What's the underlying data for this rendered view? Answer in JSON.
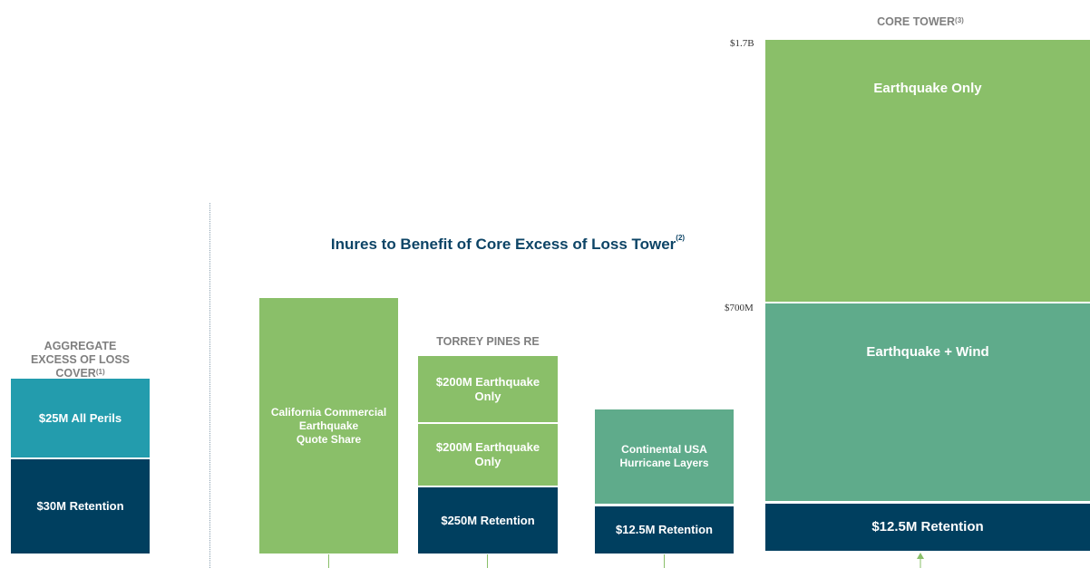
{
  "aggregate": {
    "title": [
      "AGGREGATE",
      "EXCESS OF LOSS",
      "COVER"
    ],
    "note": "(1)",
    "layers": [
      "$25M All Perils",
      "$30M Retention"
    ]
  },
  "heading": {
    "title": "Inures to Benefit of Core Excess of Loss Tower",
    "note": "(2)"
  },
  "quote_share": [
    "California Commercial",
    "Earthquake",
    "Quote Share"
  ],
  "torrey": {
    "title": "TORREY PINES RE",
    "layers": [
      [
        "$200M Earthquake",
        "Only"
      ],
      [
        "$200M Earthquake",
        "Only"
      ],
      [
        "$250M Retention"
      ]
    ]
  },
  "hurricane": {
    "layers": [
      [
        "Continental USA",
        "Hurricane Layers"
      ],
      [
        "$12.5M Retention"
      ]
    ]
  },
  "core": {
    "title": "CORE TOWER",
    "note": "(3)",
    "axis": [
      "$1.7B",
      "$700M"
    ],
    "layers": [
      "Earthquake Only",
      "Earthquake + Wind",
      "$12.5M Retention"
    ]
  }
}
